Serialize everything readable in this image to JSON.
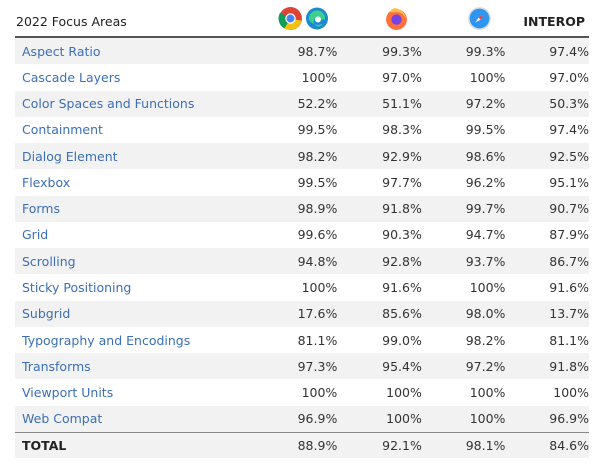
{
  "header": {
    "title": "2022 Focus Areas",
    "browsers": [
      "chrome-icon",
      "edge-icon",
      "firefox-icon",
      "safari-icon"
    ],
    "interop_label": "INTEROP"
  },
  "rows": [
    {
      "name": "Aspect Ratio",
      "values": [
        "98.7%",
        "99.3%",
        "99.3%",
        "97.4%"
      ]
    },
    {
      "name": "Cascade Layers",
      "values": [
        "100%",
        "97.0%",
        "100%",
        "97.0%"
      ]
    },
    {
      "name": "Color Spaces and Functions",
      "values": [
        "52.2%",
        "51.1%",
        "97.2%",
        "50.3%"
      ]
    },
    {
      "name": "Containment",
      "values": [
        "99.5%",
        "98.3%",
        "99.5%",
        "97.4%"
      ]
    },
    {
      "name": "Dialog Element",
      "values": [
        "98.2%",
        "92.9%",
        "98.6%",
        "92.5%"
      ]
    },
    {
      "name": "Flexbox",
      "values": [
        "99.5%",
        "97.7%",
        "96.2%",
        "95.1%"
      ]
    },
    {
      "name": "Forms",
      "values": [
        "98.9%",
        "91.8%",
        "99.7%",
        "90.7%"
      ]
    },
    {
      "name": "Grid",
      "values": [
        "99.6%",
        "90.3%",
        "94.7%",
        "87.9%"
      ]
    },
    {
      "name": "Scrolling",
      "values": [
        "94.8%",
        "92.8%",
        "93.7%",
        "86.7%"
      ]
    },
    {
      "name": "Sticky Positioning",
      "values": [
        "100%",
        "91.6%",
        "100%",
        "91.6%"
      ]
    },
    {
      "name": "Subgrid",
      "values": [
        "17.6%",
        "85.6%",
        "98.0%",
        "13.7%"
      ]
    },
    {
      "name": "Typography and Encodings",
      "values": [
        "81.1%",
        "99.0%",
        "98.2%",
        "81.1%"
      ]
    },
    {
      "name": "Transforms",
      "values": [
        "97.3%",
        "95.4%",
        "97.2%",
        "91.8%"
      ]
    },
    {
      "name": "Viewport Units",
      "values": [
        "100%",
        "100%",
        "100%",
        "100%"
      ]
    },
    {
      "name": "Web Compat",
      "values": [
        "96.9%",
        "100%",
        "100%",
        "96.9%"
      ]
    }
  ],
  "total": {
    "name": "TOTAL",
    "values": [
      "88.9%",
      "92.1%",
      "98.1%",
      "84.6%"
    ]
  },
  "colors": {
    "link": "#3b6fb6",
    "stripe": "#f2f2f2"
  }
}
